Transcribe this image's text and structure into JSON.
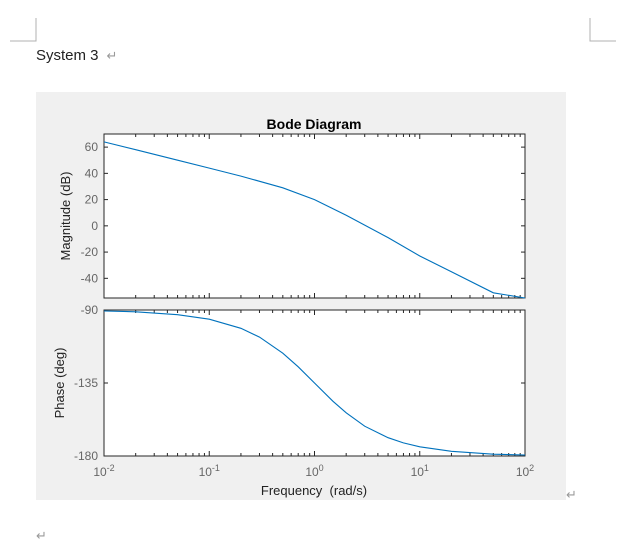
{
  "document": {
    "heading": "System 3",
    "paragraph_mark": "↵"
  },
  "colors": {
    "line": "#0072bd",
    "figure_bg": "#f0f0f0",
    "axes_bg": "#ffffff",
    "axis": "#262626",
    "tick_label": "#666666"
  },
  "chart_data": {
    "type": "line",
    "title": "Bode Diagram",
    "xlabel": "Frequency  (rad/s)",
    "xscale": "log",
    "xlim": [
      0.01,
      100
    ],
    "x_ticks": [
      {
        "base": "10",
        "exp": "-2"
      },
      {
        "base": "10",
        "exp": "-1"
      },
      {
        "base": "10",
        "exp": "0"
      },
      {
        "base": "10",
        "exp": "1"
      },
      {
        "base": "10",
        "exp": "2"
      }
    ],
    "panels": [
      {
        "name": "magnitude",
        "ylabel": "Magnitude (dB)",
        "ylim": [
          -55,
          70
        ],
        "y_ticks": [
          "60",
          "40",
          "20",
          "0",
          "-20",
          "-40"
        ],
        "series": [
          {
            "x": [
              0.01,
              0.02,
              0.05,
              0.1,
              0.2,
              0.5,
              1,
              2,
              5,
              10,
              20,
              50,
              100
            ],
            "y": [
              64.0,
              58.0,
              50.0,
              44.0,
              37.9,
              29.0,
              20.0,
              8.0,
              -9.0,
              -23.0,
              -35.0,
              -51.0,
              -63.0
            ]
          }
        ]
      },
      {
        "name": "phase",
        "ylabel": "Phase (deg)",
        "ylim": [
          -180,
          -90
        ],
        "y_ticks": [
          "-90",
          "-135",
          "-180"
        ],
        "series": [
          {
            "x": [
              0.01,
              0.02,
              0.05,
              0.1,
              0.2,
              0.3,
              0.5,
              0.7,
              1,
              1.5,
              2,
              3,
              5,
              7,
              10,
              20,
              50,
              100
            ],
            "y": [
              -90.6,
              -91.1,
              -92.9,
              -95.7,
              -101.3,
              -106.7,
              -116.6,
              -125.0,
              -135.0,
              -146.3,
              -153.4,
              -161.6,
              -168.7,
              -171.9,
              -174.3,
              -177.1,
              -178.9,
              -179.4
            ]
          }
        ]
      }
    ]
  }
}
